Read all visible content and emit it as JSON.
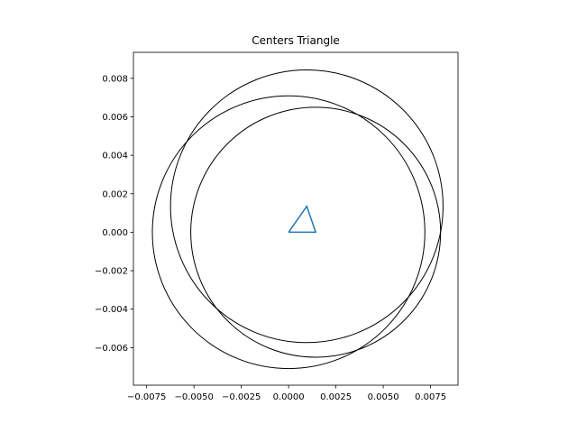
{
  "chart_data": {
    "type": "line",
    "title": "Centers Triangle",
    "xlabel": "",
    "ylabel": "",
    "xlim": [
      -0.0082,
      0.00895
    ],
    "ylim": [
      -0.00795,
      0.00935
    ],
    "aspect": "equal",
    "grid": false,
    "x_ticks": [
      {
        "value": -0.0075,
        "label": "−0.0075"
      },
      {
        "value": -0.005,
        "label": "−0.0050"
      },
      {
        "value": -0.0025,
        "label": "−0.0025"
      },
      {
        "value": 0.0,
        "label": "0.0000"
      },
      {
        "value": 0.0025,
        "label": "0.0025"
      },
      {
        "value": 0.005,
        "label": "0.0050"
      },
      {
        "value": 0.0075,
        "label": "0.0075"
      }
    ],
    "y_ticks": [
      {
        "value": -0.006,
        "label": "−0.006"
      },
      {
        "value": -0.004,
        "label": "−0.004"
      },
      {
        "value": -0.002,
        "label": "−0.002"
      },
      {
        "value": 0.0,
        "label": "0.000"
      },
      {
        "value": 0.002,
        "label": "0.002"
      },
      {
        "value": 0.004,
        "label": "0.004"
      },
      {
        "value": 0.006,
        "label": "0.006"
      },
      {
        "value": 0.008,
        "label": "0.008"
      }
    ],
    "triangle": {
      "x": [
        0.0,
        0.00143,
        0.00096,
        0.0
      ],
      "y": [
        0.0,
        0.0,
        0.00135,
        0.0
      ],
      "color": "#1f77b4"
    },
    "circles": [
      {
        "cx": 0.0,
        "cy": 0.0,
        "r": 0.0072,
        "color": "#000000"
      },
      {
        "cx": 0.00143,
        "cy": 0.0,
        "r": 0.0066,
        "color": "#000000"
      },
      {
        "cx": 0.00096,
        "cy": 0.00135,
        "r": 0.0072,
        "color": "#000000"
      }
    ]
  }
}
